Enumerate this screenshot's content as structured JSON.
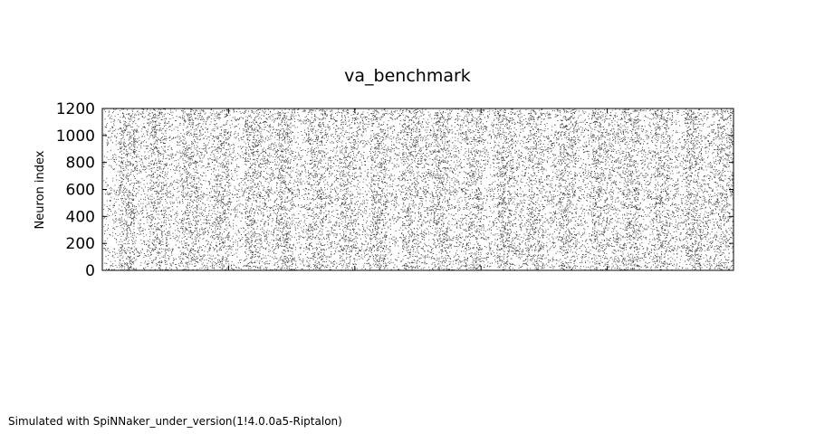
{
  "chart_data": {
    "type": "scatter",
    "title": "va_benchmark",
    "xlabel": "",
    "ylabel": "Neuron index",
    "ylim": [
      0,
      1200
    ],
    "yticks": [
      0,
      200,
      400,
      600,
      800,
      1000,
      1200
    ],
    "xticks_labeled": false,
    "x_tick_count": 6,
    "marker": "dot",
    "colors": {
      "points": "#000000",
      "axes": "#000000",
      "background": "#ffffff"
    },
    "grid": false,
    "legend": "none",
    "point_count_approx": 20000,
    "description_bins": 40,
    "density_per_bin": [
      0.35,
      0.95,
      0.5,
      0.85,
      0.45,
      0.9,
      0.55,
      0.85,
      0.4,
      0.9,
      0.6,
      0.95,
      0.45,
      0.85,
      0.55,
      0.8,
      0.5,
      0.9,
      0.45,
      0.85,
      0.6,
      0.9,
      0.5,
      0.85,
      0.45,
      0.95,
      0.55,
      0.8,
      0.5,
      0.9,
      0.45,
      0.85,
      0.6,
      0.9,
      0.5,
      0.85,
      0.45,
      0.95,
      0.55,
      0.8
    ]
  },
  "footer": "Simulated with SpiNNaker_under_version(1!4.0.0a5-Riptalon)"
}
